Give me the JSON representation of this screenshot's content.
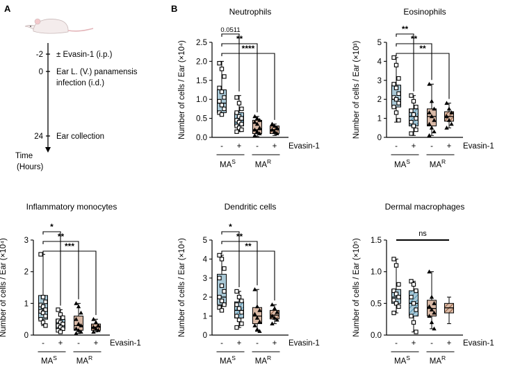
{
  "panel_labels": {
    "a": "A",
    "b": "B"
  },
  "timeline": {
    "events": [
      {
        "time": "-2",
        "text": "± Evasin-1 (i.p.)"
      },
      {
        "time": "0",
        "text": "Ear L. (V.) panamensis",
        "text2": "infection (i.d.)"
      },
      {
        "time": "24",
        "text": "Ear collection"
      }
    ],
    "axis_label": "Time",
    "axis_unit": "(Hours)"
  },
  "colors": {
    "mas_box": "#a9c8d6",
    "mar_box": "#d9b9a6",
    "mas_hatch": "#4f8fb0",
    "mar_hatch": "#8c5a3c"
  },
  "chart_data": [
    {
      "type": "box",
      "title": "Neutrophils",
      "ylabel": "Number of cells / Ear (×10⁴)",
      "ylim": [
        0,
        2.5
      ],
      "yticks": [
        "0.0",
        "0.5",
        "1.0",
        "1.5",
        "2.0",
        "2.5"
      ],
      "treatment_labels": [
        "-",
        "+",
        "-",
        "+"
      ],
      "treatment_name": "Evasin-1",
      "groups": [
        "MAS",
        "MAR"
      ],
      "boxes": [
        {
          "min": 0.6,
          "q1": 0.65,
          "median": 0.9,
          "q3": 1.25,
          "max": 2.0,
          "marker": "square"
        },
        {
          "min": 0.15,
          "q1": 0.3,
          "median": 0.45,
          "q3": 0.65,
          "max": 1.1,
          "marker": "square"
        },
        {
          "min": 0.02,
          "q1": 0.1,
          "median": 0.2,
          "q3": 0.45,
          "max": 0.55,
          "marker": "triangle"
        },
        {
          "min": 0.05,
          "q1": 0.1,
          "median": 0.2,
          "q3": 0.3,
          "max": 0.35,
          "marker": "triangle"
        }
      ],
      "points": [
        [
          1.95,
          1.8,
          1.6,
          1.3,
          1.2,
          1.05,
          0.95,
          0.85,
          0.75,
          0.65,
          0.6
        ],
        [
          1.05,
          0.9,
          0.75,
          0.65,
          0.55,
          0.5,
          0.45,
          0.4,
          0.35,
          0.3,
          0.25,
          0.2,
          0.15
        ],
        [
          0.55,
          0.5,
          0.45,
          0.4,
          0.35,
          0.25,
          0.2,
          0.15,
          0.1,
          0.05
        ],
        [
          0.35,
          0.3,
          0.25,
          0.2,
          0.15,
          0.1
        ]
      ],
      "significance": [
        {
          "from": 0,
          "to": 1,
          "label": "0.0511"
        },
        {
          "from": 0,
          "to": 2,
          "label": "**"
        },
        {
          "from": 0,
          "to": 3,
          "label": "****"
        }
      ]
    },
    {
      "type": "box",
      "title": "Eosinophils",
      "ylabel": "Number of cells / Ear (×10³)",
      "ylim": [
        0,
        5
      ],
      "yticks": [
        "0",
        "1",
        "2",
        "3",
        "4",
        "5"
      ],
      "treatment_labels": [
        "-",
        "+",
        "-",
        "+"
      ],
      "treatment_name": "Evasin-1",
      "groups": [
        "MAS",
        "MAR"
      ],
      "boxes": [
        {
          "min": 0.8,
          "q1": 1.6,
          "median": 2.0,
          "q3": 2.75,
          "max": 4.2,
          "marker": "square"
        },
        {
          "min": 0.1,
          "q1": 0.6,
          "median": 1.1,
          "q3": 1.5,
          "max": 2.2,
          "marker": "square"
        },
        {
          "min": 0.1,
          "q1": 0.6,
          "median": 1.1,
          "q3": 1.5,
          "max": 2.8,
          "marker": "triangle"
        },
        {
          "min": 0.5,
          "q1": 0.85,
          "median": 1.1,
          "q3": 1.35,
          "max": 1.8,
          "marker": "triangle"
        }
      ],
      "points": [
        [
          4.2,
          3.8,
          3.1,
          2.8,
          2.6,
          2.3,
          2.1,
          2.0,
          1.8,
          1.6,
          1.3,
          0.9
        ],
        [
          2.2,
          1.9,
          1.6,
          1.4,
          1.2,
          1.0,
          0.8,
          0.6,
          0.4,
          0.2
        ],
        [
          2.8,
          1.9,
          1.5,
          1.3,
          1.1,
          0.9,
          0.7,
          0.5,
          0.3,
          0.1
        ],
        [
          1.8,
          1.5,
          1.3,
          1.1,
          0.9,
          0.7,
          0.5
        ]
      ],
      "significance": [
        {
          "from": 0,
          "to": 1,
          "label": "**"
        },
        {
          "from": 0,
          "to": 2,
          "label": "**"
        },
        {
          "from": 0,
          "to": 3,
          "label": "**"
        }
      ]
    },
    {
      "type": "box",
      "title": "Inflammatory monocytes",
      "ylabel": "Number of cells / Ear (×10⁴)",
      "ylim": [
        0,
        3
      ],
      "yticks": [
        "0",
        "1",
        "2",
        "3"
      ],
      "treatment_labels": [
        "-",
        "+",
        "-",
        "+"
      ],
      "treatment_name": "Evasin-1",
      "groups": [
        "MAS",
        "MAR"
      ],
      "boxes": [
        {
          "min": 0.3,
          "q1": 0.5,
          "median": 0.8,
          "q3": 1.25,
          "max": 2.55,
          "marker": "square"
        },
        {
          "min": 0.1,
          "q1": 0.2,
          "median": 0.35,
          "q3": 0.5,
          "max": 0.8,
          "marker": "square"
        },
        {
          "min": 0.05,
          "q1": 0.15,
          "median": 0.3,
          "q3": 0.6,
          "max": 1.0,
          "marker": "triangle"
        },
        {
          "min": 0.1,
          "q1": 0.15,
          "median": 0.25,
          "q3": 0.35,
          "max": 0.5,
          "marker": "triangle"
        }
      ],
      "points": [
        [
          2.55,
          1.2,
          1.05,
          0.95,
          0.9,
          0.8,
          0.75,
          0.7,
          0.6,
          0.5,
          0.4,
          0.3
        ],
        [
          0.8,
          0.65,
          0.55,
          0.45,
          0.4,
          0.35,
          0.3,
          0.25,
          0.2,
          0.15,
          0.1
        ],
        [
          1.0,
          0.9,
          0.7,
          0.5,
          0.35,
          0.3,
          0.2,
          0.15,
          0.1,
          0.05
        ],
        [
          0.5,
          0.4,
          0.3,
          0.25,
          0.2,
          0.15,
          0.1
        ]
      ],
      "significance": [
        {
          "from": 0,
          "to": 1,
          "label": "*"
        },
        {
          "from": 0,
          "to": 2,
          "label": "**"
        },
        {
          "from": 0,
          "to": 3,
          "label": "***"
        }
      ]
    },
    {
      "type": "box",
      "title": "Dendritic cells",
      "ylabel": "Number of cells / Ear (×10⁴)",
      "ylim": [
        0,
        5
      ],
      "yticks": [
        "0",
        "1",
        "2",
        "3",
        "4",
        "5"
      ],
      "treatment_labels": [
        "-",
        "+",
        "-",
        "+"
      ],
      "treatment_name": "Evasin-1",
      "groups": [
        "MAS",
        "MAR"
      ],
      "boxes": [
        {
          "min": 1.3,
          "q1": 1.6,
          "median": 2.0,
          "q3": 3.2,
          "max": 4.2,
          "marker": "square"
        },
        {
          "min": 0.4,
          "q1": 0.9,
          "median": 1.3,
          "q3": 1.75,
          "max": 2.3,
          "marker": "square"
        },
        {
          "min": 0.2,
          "q1": 0.6,
          "median": 1.0,
          "q3": 1.45,
          "max": 2.4,
          "marker": "triangle"
        },
        {
          "min": 0.6,
          "q1": 0.85,
          "median": 1.05,
          "q3": 1.3,
          "max": 1.6,
          "marker": "triangle"
        }
      ],
      "points": [
        [
          4.2,
          4.0,
          3.5,
          3.0,
          2.6,
          2.3,
          2.0,
          1.8,
          1.6,
          1.45,
          1.3
        ],
        [
          2.3,
          2.0,
          1.8,
          1.6,
          1.4,
          1.2,
          1.0,
          0.8,
          0.6,
          0.4
        ],
        [
          2.4,
          1.5,
          1.3,
          1.1,
          0.9,
          0.7,
          0.5,
          0.3,
          0.2
        ],
        [
          1.6,
          1.4,
          1.2,
          1.0,
          0.9,
          0.8,
          0.6
        ]
      ],
      "significance": [
        {
          "from": 0,
          "to": 1,
          "label": "*"
        },
        {
          "from": 0,
          "to": 2,
          "label": "**"
        },
        {
          "from": 0,
          "to": 3,
          "label": "**"
        }
      ]
    },
    {
      "type": "box",
      "title": "Dermal macrophages",
      "ylabel": "Number of cells / Ear (×10⁵)",
      "ylim": [
        0,
        1.5
      ],
      "yticks": [
        "0.0",
        "0.5",
        "1.0",
        "1.5"
      ],
      "treatment_labels": [
        "-",
        "+",
        "-",
        "+"
      ],
      "treatment_name": "Evasin-1",
      "groups": [
        "MAS",
        "MAR"
      ],
      "boxes": [
        {
          "min": 0.35,
          "q1": 0.5,
          "median": 0.6,
          "q3": 0.72,
          "max": 1.2,
          "marker": "square"
        },
        {
          "min": 0.05,
          "q1": 0.3,
          "median": 0.5,
          "q3": 0.7,
          "max": 0.85,
          "marker": "square"
        },
        {
          "min": 0.1,
          "q1": 0.3,
          "median": 0.42,
          "q3": 0.55,
          "max": 1.0,
          "marker": "triangle"
        },
        {
          "min": 0.18,
          "q1": 0.35,
          "median": 0.43,
          "q3": 0.5,
          "max": 0.6,
          "marker": "none"
        }
      ],
      "points": [
        [
          1.2,
          1.1,
          0.8,
          0.7,
          0.65,
          0.6,
          0.55,
          0.5,
          0.45,
          0.35
        ],
        [
          0.85,
          0.8,
          0.7,
          0.6,
          0.5,
          0.4,
          0.3,
          0.2,
          0.05
        ],
        [
          1.0,
          0.6,
          0.5,
          0.45,
          0.4,
          0.35,
          0.3,
          0.2,
          0.1
        ],
        []
      ],
      "significance": [
        {
          "from": 0,
          "to": 3,
          "label": "ns",
          "flat": true
        }
      ]
    }
  ]
}
